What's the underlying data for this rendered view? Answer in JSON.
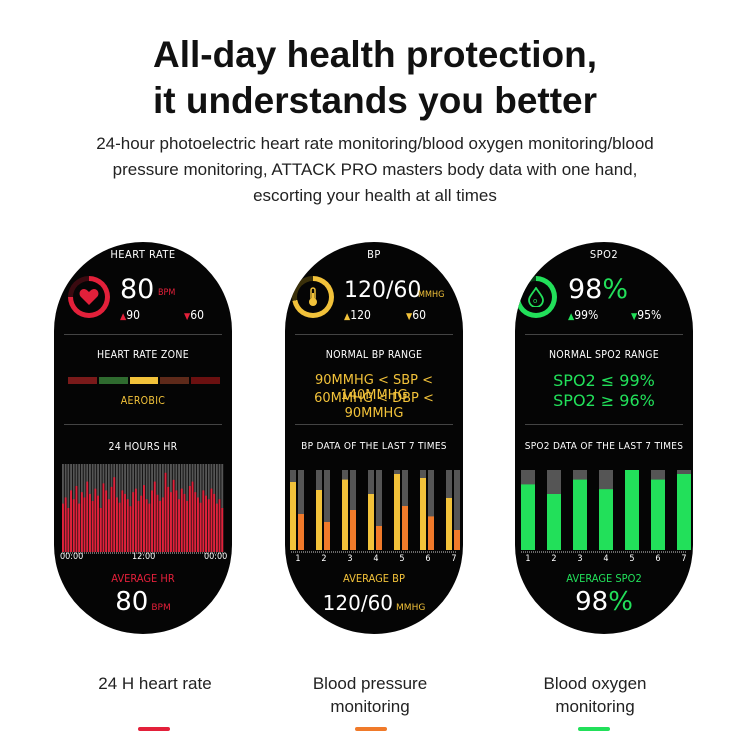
{
  "headline": {
    "line1": "All-day health protection,",
    "line2": "it understands you better"
  },
  "subtitle": {
    "line1": "24-hour photoelectric heart rate monitoring/blood oxygen monitoring/blood",
    "line2": "pressure monitoring, ATTACK PRO masters body data with one hand,",
    "line3": "escorting your health at all times"
  },
  "colors": {
    "hr": "#e3203a",
    "bp": "#f2c23a",
    "bp_low": "#f07a2a",
    "spo2": "#22e05a",
    "bar_bg": "#555555"
  },
  "hr": {
    "title": "HEART RATE",
    "icon": "heart-icon",
    "value": "80",
    "unit": "BPM",
    "up_symbol": "▲",
    "up": "90",
    "down_symbol": "▼",
    "down": "60",
    "zone_title": "HEART RATE ZONE",
    "zone": "AEROBIC",
    "zone_colors": [
      "#7a1a1a",
      "#2f6b2f",
      "#f2c23a",
      "#5e2a1a",
      "#6b1010"
    ],
    "chart_title": "24 HOURS HR",
    "ticks": [
      "00:00",
      "12:00",
      "00:00"
    ],
    "avg_label": "AVERAGE HR",
    "avg_value": "80",
    "avg_unit": "BPM"
  },
  "bp": {
    "title": "BP",
    "icon": "thermometer-icon",
    "value": "120/60",
    "unit": "MMHG",
    "up_symbol": "▲",
    "up": "120",
    "down_symbol": "▼",
    "down": "60",
    "range_title": "NORMAL BP RANGE",
    "range1": "90MMHG < SBP < 140MMHG",
    "range2": "60MMHG < DBP < 90MMHG",
    "chart_title": "BP DATA OF THE LAST 7 TIMES",
    "avg_label": "AVERAGE BP",
    "avg_value": "120/60",
    "avg_unit": "MMHG"
  },
  "spo2": {
    "title": "SPO2",
    "icon": "oxygen-drop-icon",
    "value": "98",
    "unit": "%",
    "up_symbol": "▲",
    "up": "99%",
    "down_symbol": "▼",
    "down": "95%",
    "range_title": "NORMAL SPO2 RANGE",
    "range1": "SPO2 ≤ 99%",
    "range2": "SPO2 ≥ 96%",
    "chart_title": "SPO2 DATA OF THE LAST 7 TIMES",
    "avg_label": "AVERAGE SPO2",
    "avg_value": "98",
    "avg_unit": "%"
  },
  "captions": {
    "hr": "24 H heart rate",
    "bp1": "Blood pressure",
    "bp2": "monitoring",
    "spo2_1": "Blood oxygen",
    "spo2_2": "monitoring"
  },
  "chart_data": [
    {
      "type": "bar",
      "values": [
        0.55,
        0.62,
        0.5,
        0.7,
        0.6,
        0.75,
        0.55,
        0.68,
        0.62,
        0.8,
        0.66,
        0.58,
        0.72,
        0.64,
        0.5,
        0.78,
        0.7,
        0.6,
        0.74,
        0.85,
        0.62,
        0.56,
        0.7,
        0.66,
        0.6,
        0.52,
        0.68,
        0.72,
        0.58,
        0.64,
        0.76,
        0.6,
        0.55,
        0.7,
        0.8,
        0.65,
        0.58,
        0.62,
        0.9,
        0.74,
        0.68,
        0.82,
        0.7,
        0.6,
        0.72,
        0.66,
        0.58,
        0.75,
        0.8,
        0.68,
        0.62,
        0.56,
        0.7,
        0.64,
        0.6,
        0.72,
        0.66,
        0.55,
        0.6,
        0.5
      ],
      "ylim": [
        0,
        1
      ],
      "xticks": [
        "00:00",
        "12:00",
        "00:00"
      ]
    },
    {
      "type": "bar",
      "categories": [
        "1",
        "2",
        "3",
        "4",
        "5",
        "6",
        "7"
      ],
      "series": [
        {
          "values": [
            0.85,
            0.75,
            0.88,
            0.7,
            0.95,
            0.9,
            0.65
          ]
        },
        {
          "values": [
            0.45,
            0.35,
            0.5,
            0.3,
            0.55,
            0.42,
            0.25
          ]
        }
      ],
      "ylim": [
        0,
        1
      ]
    },
    {
      "type": "bar",
      "categories": [
        "1",
        "2",
        "3",
        "4",
        "5",
        "6",
        "7"
      ],
      "values": [
        0.82,
        0.7,
        0.88,
        0.76,
        1.0,
        0.88,
        0.95
      ],
      "ylim": [
        0,
        1
      ]
    }
  ]
}
